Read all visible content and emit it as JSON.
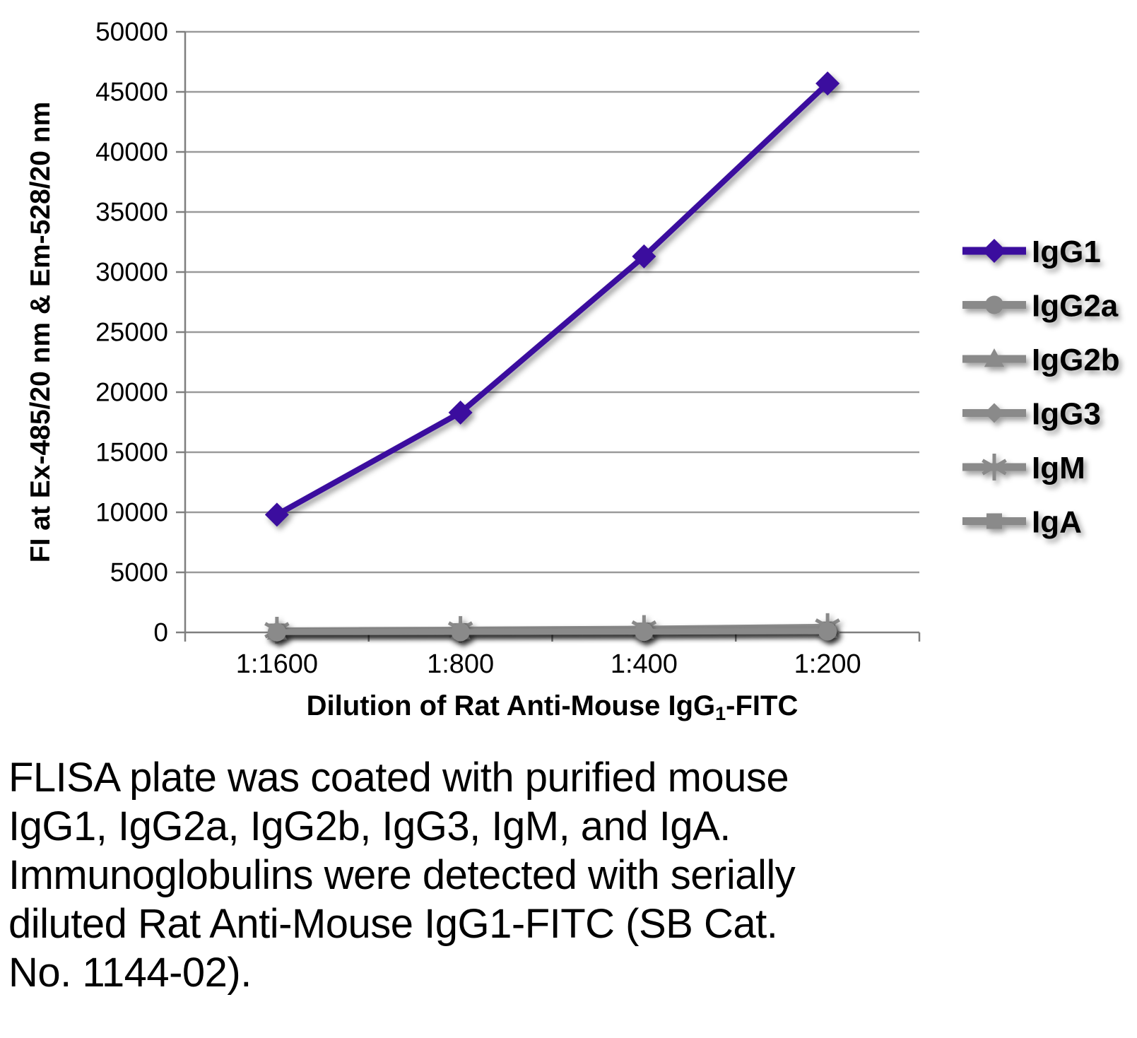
{
  "chart_data": {
    "type": "line",
    "categories": [
      "1:1600",
      "1:800",
      "1:400",
      "1:200"
    ],
    "series": [
      {
        "name": "IgG1",
        "color": "#3A0C9E",
        "marker": "diamond",
        "values": [
          9800,
          18300,
          31300,
          45700
        ]
      },
      {
        "name": "IgG2a",
        "color": "#8A8A8A",
        "marker": "circle",
        "values": [
          20,
          30,
          50,
          90
        ]
      },
      {
        "name": "IgG2b",
        "color": "#8A8A8A",
        "marker": "triangle",
        "values": [
          60,
          90,
          130,
          200
        ]
      },
      {
        "name": "IgG3",
        "color": "#8A8A8A",
        "marker": "diamond",
        "values": [
          30,
          50,
          70,
          120
        ]
      },
      {
        "name": "IgM",
        "color": "#8A8A8A",
        "marker": "asterisk",
        "values": [
          180,
          240,
          320,
          480
        ]
      },
      {
        "name": "IgA",
        "color": "#8A8A8A",
        "marker": "square",
        "values": [
          90,
          120,
          170,
          260
        ]
      }
    ],
    "title": "",
    "ylabel": "FI at Ex-485/20 nm & Em-528/20 nm",
    "xlabel_parts": {
      "prefix": "Dilution of Rat Anti-Mouse IgG",
      "subscript": "1",
      "suffix": "-FITC"
    },
    "ylim": [
      0,
      50000
    ],
    "yticks": [
      0,
      5000,
      10000,
      15000,
      20000,
      25000,
      30000,
      35000,
      40000,
      45000,
      50000
    ],
    "grid": "horizontal",
    "legend_position": "right",
    "colors": {
      "gridline": "#9A9A9A",
      "axis": "#7F7F7F",
      "tick_label": "#000000",
      "axis_title": "#000000",
      "legend_label": "#000000"
    }
  },
  "caption": {
    "lines": [
      "FLISA plate was coated with purified mouse",
      "IgG1, IgG2a, IgG2b, IgG3, IgM, and IgA.",
      "Immunoglobulins were detected with serially",
      "diluted Rat Anti-Mouse IgG1-FITC (SB Cat.",
      "No. 1144-02)."
    ]
  }
}
